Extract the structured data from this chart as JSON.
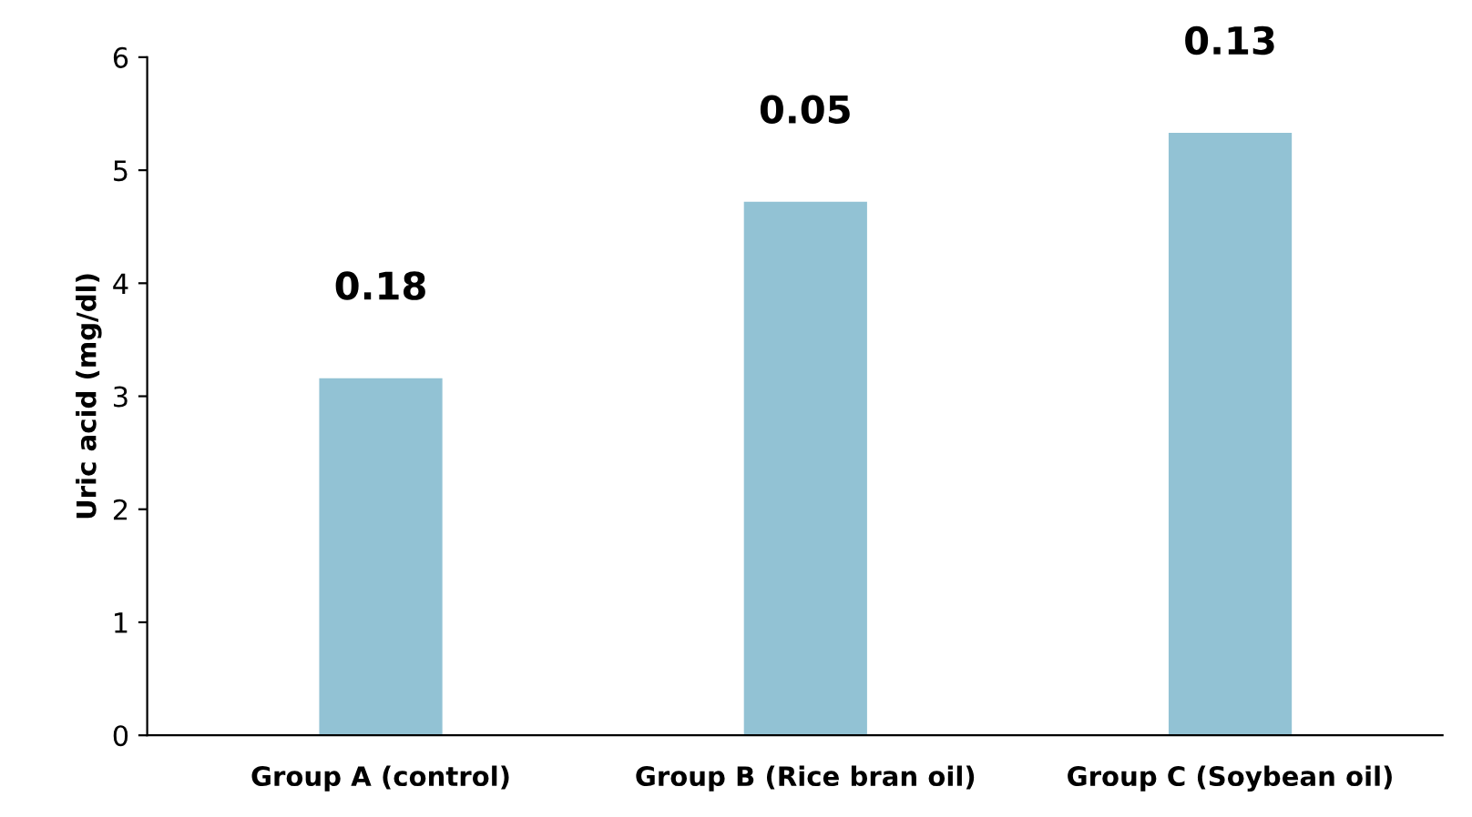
{
  "chart_data": {
    "type": "bar",
    "ylabel": "Uric acid (mg/dl)",
    "categories": [
      "Group A (control)",
      "Group B (Rice bran oil)",
      "Group C (Soybean oil)"
    ],
    "values": [
      3.16,
      4.72,
      5.33
    ],
    "color": "#92c2d4",
    "ylim": [
      0,
      6
    ],
    "yticks": [
      0,
      1,
      2,
      3,
      4,
      5,
      6
    ],
    "grid": false,
    "annotations": [
      {
        "text": "0.18",
        "x": "Group A (control)",
        "y": 3.16
      },
      {
        "text": "0.05",
        "x": "Group B (Rice bran oil)",
        "y": 4.72
      },
      {
        "text": "0.13",
        "x": "Group C (Soybean oil)",
        "y": 5.33
      }
    ]
  }
}
